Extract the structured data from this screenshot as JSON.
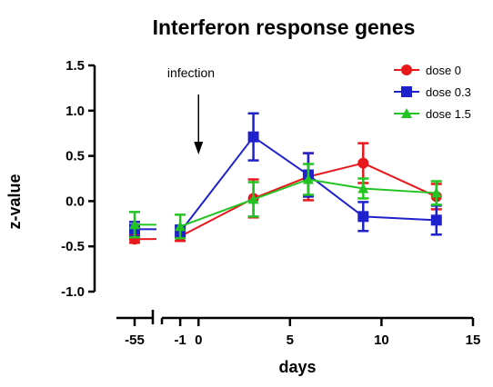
{
  "chart_data": {
    "type": "line",
    "title": "Interferon response genes",
    "xlabel": "days",
    "ylabel": "z-value",
    "ylim": [
      -1.0,
      1.5
    ],
    "y_ticks": [
      "1.5",
      "1.0",
      "0.5",
      "0.0",
      "-0.5",
      "-1.0"
    ],
    "y_tick_values": [
      1.5,
      1.0,
      0.5,
      0.0,
      -0.5,
      -1.0
    ],
    "x_axis_segments": [
      {
        "range": [
          -56,
          -54
        ],
        "ticks": [
          {
            "value": -55,
            "label": "-55"
          }
        ]
      },
      {
        "range": [
          -2,
          15
        ],
        "ticks": [
          {
            "value": -1,
            "label": "-1"
          },
          {
            "value": 0,
            "label": "0"
          },
          {
            "value": 5,
            "label": "5"
          },
          {
            "value": 10,
            "label": "10"
          },
          {
            "value": 15,
            "label": "15"
          }
        ]
      }
    ],
    "annotation": {
      "text": "infection",
      "x": 0
    },
    "grid": false,
    "legend_position": "top-right",
    "series": [
      {
        "name": "dose 0",
        "color": "#e8181c",
        "marker": "circle",
        "points": [
          {
            "x": -55,
            "y": -0.42,
            "err": 0.04
          },
          {
            "x": -1,
            "y": -0.39,
            "err": 0.05
          },
          {
            "x": 3,
            "y": 0.03,
            "err": 0.21
          },
          {
            "x": 6,
            "y": 0.27,
            "err": 0.26
          },
          {
            "x": 9,
            "y": 0.42,
            "err": 0.22
          },
          {
            "x": 13,
            "y": 0.05,
            "err": 0.14
          }
        ]
      },
      {
        "name": "dose 0.3",
        "color": "#1f22cc",
        "marker": "square",
        "points": [
          {
            "x": -55,
            "y": -0.31,
            "err": 0.08
          },
          {
            "x": -1,
            "y": -0.34,
            "err": 0.07
          },
          {
            "x": 3,
            "y": 0.71,
            "err": 0.26
          },
          {
            "x": 6,
            "y": 0.29,
            "err": 0.24
          },
          {
            "x": 9,
            "y": -0.17,
            "err": 0.16
          },
          {
            "x": 13,
            "y": -0.21,
            "err": 0.16
          }
        ]
      },
      {
        "name": "dose 1.5",
        "color": "#22c422",
        "marker": "triangle",
        "points": [
          {
            "x": -55,
            "y": -0.26,
            "err": 0.14
          },
          {
            "x": -1,
            "y": -0.28,
            "err": 0.13
          },
          {
            "x": 3,
            "y": 0.02,
            "err": 0.19
          },
          {
            "x": 6,
            "y": 0.24,
            "err": 0.17
          },
          {
            "x": 9,
            "y": 0.14,
            "err": 0.11
          },
          {
            "x": 13,
            "y": 0.09,
            "err": 0.13
          }
        ]
      }
    ]
  }
}
